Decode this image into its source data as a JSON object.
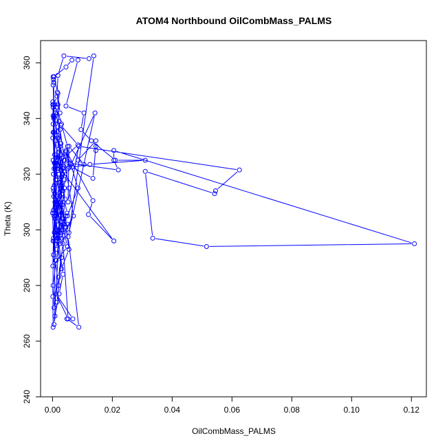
{
  "chart_data": {
    "type": "scatter",
    "title": "ATOM4 Northbound OilCombMass_PALMS",
    "xlabel": "OilCombMass_PALMS",
    "ylabel": "Theta (K)",
    "xlim": [
      -0.004,
      0.125
    ],
    "ylim": [
      240,
      368
    ],
    "x_ticks": [
      "0.00",
      "0.02",
      "0.04",
      "0.06",
      "0.08",
      "0.10",
      "0.12"
    ],
    "y_ticks": [
      "240",
      "260",
      "280",
      "300",
      "320",
      "340",
      "360"
    ],
    "grid": false,
    "legend": "none",
    "color": "#0000ff",
    "series": [
      {
        "x": [
          0.0002,
          0.0001,
          0.0003,
          0.0,
          0.001,
          0.0025,
          0.0035,
          0.0015,
          0.003,
          0.005,
          0.0001,
          0.0003,
          0.0008,
          0.002,
          0.0045,
          0.006,
          0.0085,
          0.005,
          0.003,
          0.0015,
          0.0005,
          0.0002,
          0.001,
          0.0025,
          0.004,
          0.0055,
          0.007,
          0.0022,
          0.0012,
          0.0002,
          0.0005,
          0.002,
          0.0035,
          0.005,
          0.0008,
          0.0002,
          0.0015,
          0.0028,
          0.004,
          0.0018,
          0.0006,
          0.0003,
          0.0012,
          0.0025,
          0.0038,
          0.005,
          0.003,
          0.0015,
          0.0004,
          0.0001,
          0.0008,
          0.002,
          0.0032,
          0.0045,
          0.0055,
          0.003,
          0.0012,
          0.0003,
          0.0006,
          0.0018,
          0.003,
          0.0042,
          0.0035,
          0.002,
          0.001,
          0.0004,
          0.0015,
          0.0028,
          0.0022,
          0.0008,
          0.0002,
          0.001,
          0.0022,
          0.0035,
          0.0048,
          0.0025,
          0.0012,
          0.0003,
          0.0007,
          0.0016,
          0.0026,
          0.004,
          0.0015,
          0.0005,
          0.0002,
          0.0011,
          0.002,
          0.0032,
          0.0024,
          0.0009,
          0.0002,
          0.0013,
          0.0027,
          0.0038,
          0.0018,
          0.0006,
          0.0001,
          0.0009,
          0.0021,
          0.0034,
          0.0005,
          0.0015,
          0.003,
          0.002,
          0.001,
          0.0008,
          0.0025,
          0.0004,
          0.0012,
          0.0009,
          0.0002,
          0.0002,
          0.0003,
          0.0004,
          0.0008,
          0.0022,
          0.0035,
          0.0015,
          0.003,
          0.0045,
          0.0015,
          0.0025,
          0.0012,
          0.003,
          0.004,
          0.0015,
          0.0002,
          0.0001,
          0.0003,
          0.0015,
          0.0025,
          0.0018,
          0.0005,
          0.0045,
          0.0065,
          0.0085,
          0.0045,
          0.0105,
          0.0095,
          0.013,
          0.021,
          0.031,
          0.0125,
          0.0065,
          0.0135,
          0.0145,
          0.0145,
          0.0145,
          0.0085,
          0.0105,
          0.0055,
          0.0052,
          0.0088,
          0.0625,
          0.0545,
          0.0542,
          0.031,
          0.0335,
          0.0515,
          0.121,
          0.0205,
          0.0205,
          0.022,
          0.0055,
          0.0055,
          0.0045,
          0.0135,
          0.012,
          0.0205,
          0.003,
          0.0022,
          0.002,
          0.0052,
          0.0032,
          0.0005,
          0.0019,
          0.0055,
          0.0138,
          0.0122,
          0.0038,
          0.0018,
          0.0016,
          0.0018,
          0.0032,
          0.0052,
          0.0012,
          0.0068,
          0.0048,
          0.0088,
          0.0052,
          0.0142,
          0.0062,
          0.0045,
          0.0085,
          0.0028,
          0.0005,
          0.0002,
          0.0004,
          0.0006
        ],
        "y": [
          265,
          276,
          296,
          306,
          318,
          330,
          322,
          312,
          303,
          294,
          287,
          297,
          310,
          320,
          328,
          324,
          315,
          305,
          300,
          309,
          322,
          335,
          342,
          336,
          325,
          315,
          305,
          296,
          289,
          280,
          272,
          283,
          295,
          302,
          313,
          325,
          334,
          327,
          318,
          308,
          299,
          291,
          303,
          312,
          321,
          330,
          338,
          344,
          340,
          333,
          324,
          317,
          309,
          301,
          293,
          286,
          298,
          307,
          316,
          326,
          319,
          311,
          304,
          297,
          305,
          314,
          322,
          331,
          339,
          345,
          341,
          332,
          323,
          314,
          306,
          299,
          310,
          320,
          327,
          318,
          310,
          302,
          296,
          305,
          315,
          324,
          328,
          320,
          312,
          304,
          296,
          308,
          317,
          325,
          333,
          341,
          346,
          338,
          329,
          320,
          266,
          274,
          290,
          280,
          289,
          296,
          303,
          312,
          326,
          322,
          352,
          355,
          354,
          353,
          269,
          277,
          284,
          300,
          297,
          305,
          300,
          295,
          293,
          306,
          315,
          296,
          338,
          345,
          345,
          348,
          342,
          349,
          355,
          358.5,
          361,
          361,
          344.5,
          342,
          336,
          332,
          325,
          325,
          323.5,
          322.5,
          318.5,
          330,
          328.5,
          332,
          325,
          323.5,
          330,
          310,
          330,
          321.5,
          314,
          313,
          321,
          297,
          294,
          295,
          328.5,
          325,
          321.5,
          324,
          322.5,
          328.5,
          310.5,
          305.5,
          296,
          321.5,
          320,
          326,
          322,
          313,
          306,
          310,
          299,
          362.5,
          361.5,
          362.5,
          355.5,
          349.5,
          345,
          300,
          268,
          277,
          268,
          268,
          265,
          297.5,
          342,
          323.5,
          326.5,
          330.5,
          337.5,
          335,
          344,
          340.5,
          324
        ]
      }
    ]
  }
}
